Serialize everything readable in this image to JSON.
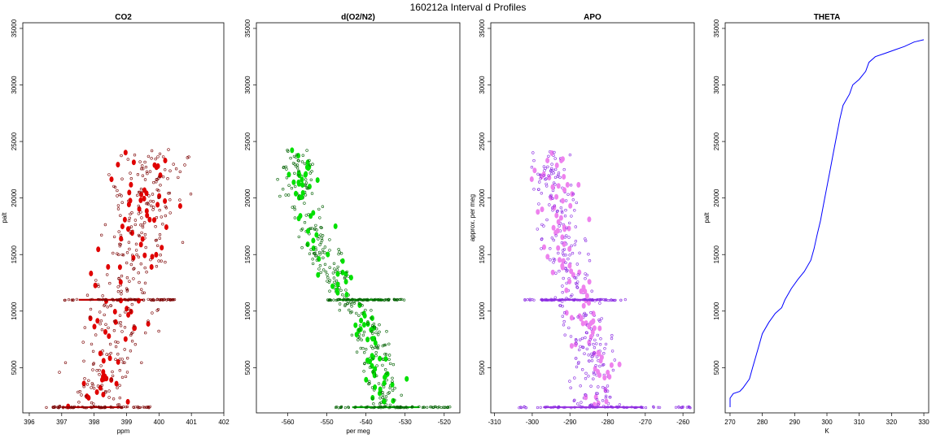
{
  "figure_title": "160212a   Interval d Profiles",
  "chart_data": [
    {
      "type": "scatter",
      "title": "CO2",
      "xlabel": "ppm",
      "ylabel": "palt",
      "xlim": [
        395.8,
        402.0
      ],
      "ylim": [
        1000,
        35500
      ],
      "xticks": [
        396,
        397,
        398,
        399,
        400,
        401,
        402
      ],
      "yticks": [
        5000,
        10000,
        15000,
        20000,
        25000,
        30000,
        35000
      ],
      "x_center_profile": [
        [
          1500,
          398.1
        ],
        [
          6000,
          398.4
        ],
        [
          11000,
          398.9
        ],
        [
          17000,
          399.5
        ],
        [
          24000,
          399.8
        ]
      ],
      "x_spread": 1.1,
      "y_range": [
        1500,
        24300
      ],
      "band_altitudes": [
        1500,
        11000
      ],
      "band_x_ranges": [
        [
          396.5,
          399.8
        ],
        [
          397.0,
          400.5
        ]
      ],
      "colors": {
        "points": "#e00000",
        "edge": "#7a0000",
        "band": "#c00000"
      },
      "show_ylabel": true
    },
    {
      "type": "scatter",
      "title": "d(O2/N2)",
      "xlabel": "per meg",
      "ylabel": "",
      "xlim": [
        -568,
        -516
      ],
      "ylim": [
        1000,
        35500
      ],
      "xticks": [
        -560,
        -550,
        -540,
        -530,
        -520
      ],
      "yticks": [
        5000,
        10000,
        15000,
        20000,
        25000,
        30000,
        35000
      ],
      "x_center_profile": [
        [
          1500,
          -535
        ],
        [
          6000,
          -537
        ],
        [
          9000,
          -540
        ],
        [
          11000,
          -545
        ],
        [
          14000,
          -550
        ],
        [
          20000,
          -557
        ],
        [
          24000,
          -557
        ]
      ],
      "x_spread": 4.5,
      "y_range": [
        1500,
        24300
      ],
      "band_altitudes": [
        1500,
        11000
      ],
      "band_x_ranges": [
        [
          -548,
          -518
        ],
        [
          -550,
          -530
        ]
      ],
      "colors": {
        "points": "#00e000",
        "edge": "#006000",
        "band": "#00b000"
      },
      "show_ylabel": false
    },
    {
      "type": "scatter",
      "title": "APO",
      "xlabel": "",
      "ylabel": "approx. per meg",
      "xlim": [
        -311,
        -257
      ],
      "ylim": [
        1000,
        35500
      ],
      "xticks": [
        -310,
        -300,
        -290,
        -280,
        -270,
        -260
      ],
      "yticks": [
        5000,
        10000,
        15000,
        20000,
        25000,
        30000,
        35000
      ],
      "x_center_profile": [
        [
          1500,
          -283
        ],
        [
          6000,
          -284
        ],
        [
          11000,
          -288
        ],
        [
          17000,
          -292
        ],
        [
          24000,
          -295
        ]
      ],
      "x_spread": 5.5,
      "y_range": [
        1500,
        24300
      ],
      "band_altitudes": [
        1500,
        11000
      ],
      "band_x_ranges": [
        [
          -304,
          -258
        ],
        [
          -302,
          -275
        ]
      ],
      "colors": {
        "points": "#ee82ee",
        "edge": "#8a2be2",
        "band": "#a040e0"
      },
      "show_ylabel": true
    },
    {
      "type": "line",
      "title": "THETA",
      "xlabel": "K",
      "ylabel": "palt",
      "xlim": [
        268.5,
        331.5
      ],
      "ylim": [
        1000,
        35500
      ],
      "xticks": [
        270,
        280,
        290,
        300,
        310,
        320,
        330
      ],
      "yticks": [
        5000,
        10000,
        15000,
        20000,
        25000,
        30000,
        35000
      ],
      "points": [
        [
          270,
          1500
        ],
        [
          270,
          2300
        ],
        [
          271,
          2700
        ],
        [
          273,
          2900
        ],
        [
          274,
          3200
        ],
        [
          276,
          4000
        ],
        [
          277,
          5000
        ],
        [
          278,
          6000
        ],
        [
          279,
          7000
        ],
        [
          280,
          8000
        ],
        [
          282,
          9000
        ],
        [
          284,
          9800
        ],
        [
          286,
          10300
        ],
        [
          287,
          11000
        ],
        [
          289,
          12000
        ],
        [
          291,
          12800
        ],
        [
          293,
          13500
        ],
        [
          295,
          14500
        ],
        [
          296,
          15500
        ],
        [
          297,
          16800
        ],
        [
          298,
          18000
        ],
        [
          299,
          19500
        ],
        [
          300,
          21000
        ],
        [
          301,
          22500
        ],
        [
          302,
          24000
        ],
        [
          303,
          25500
        ],
        [
          304,
          27000
        ],
        [
          305,
          28200
        ],
        [
          307,
          29200
        ],
        [
          308,
          30000
        ],
        [
          310,
          30500
        ],
        [
          312,
          31200
        ],
        [
          313,
          32000
        ],
        [
          315,
          32500
        ],
        [
          318,
          32800
        ],
        [
          321,
          33100
        ],
        [
          324,
          33400
        ],
        [
          327,
          33800
        ],
        [
          330,
          34000
        ]
      ],
      "colors": {
        "line": "#0000ff"
      },
      "show_ylabel": true
    }
  ]
}
